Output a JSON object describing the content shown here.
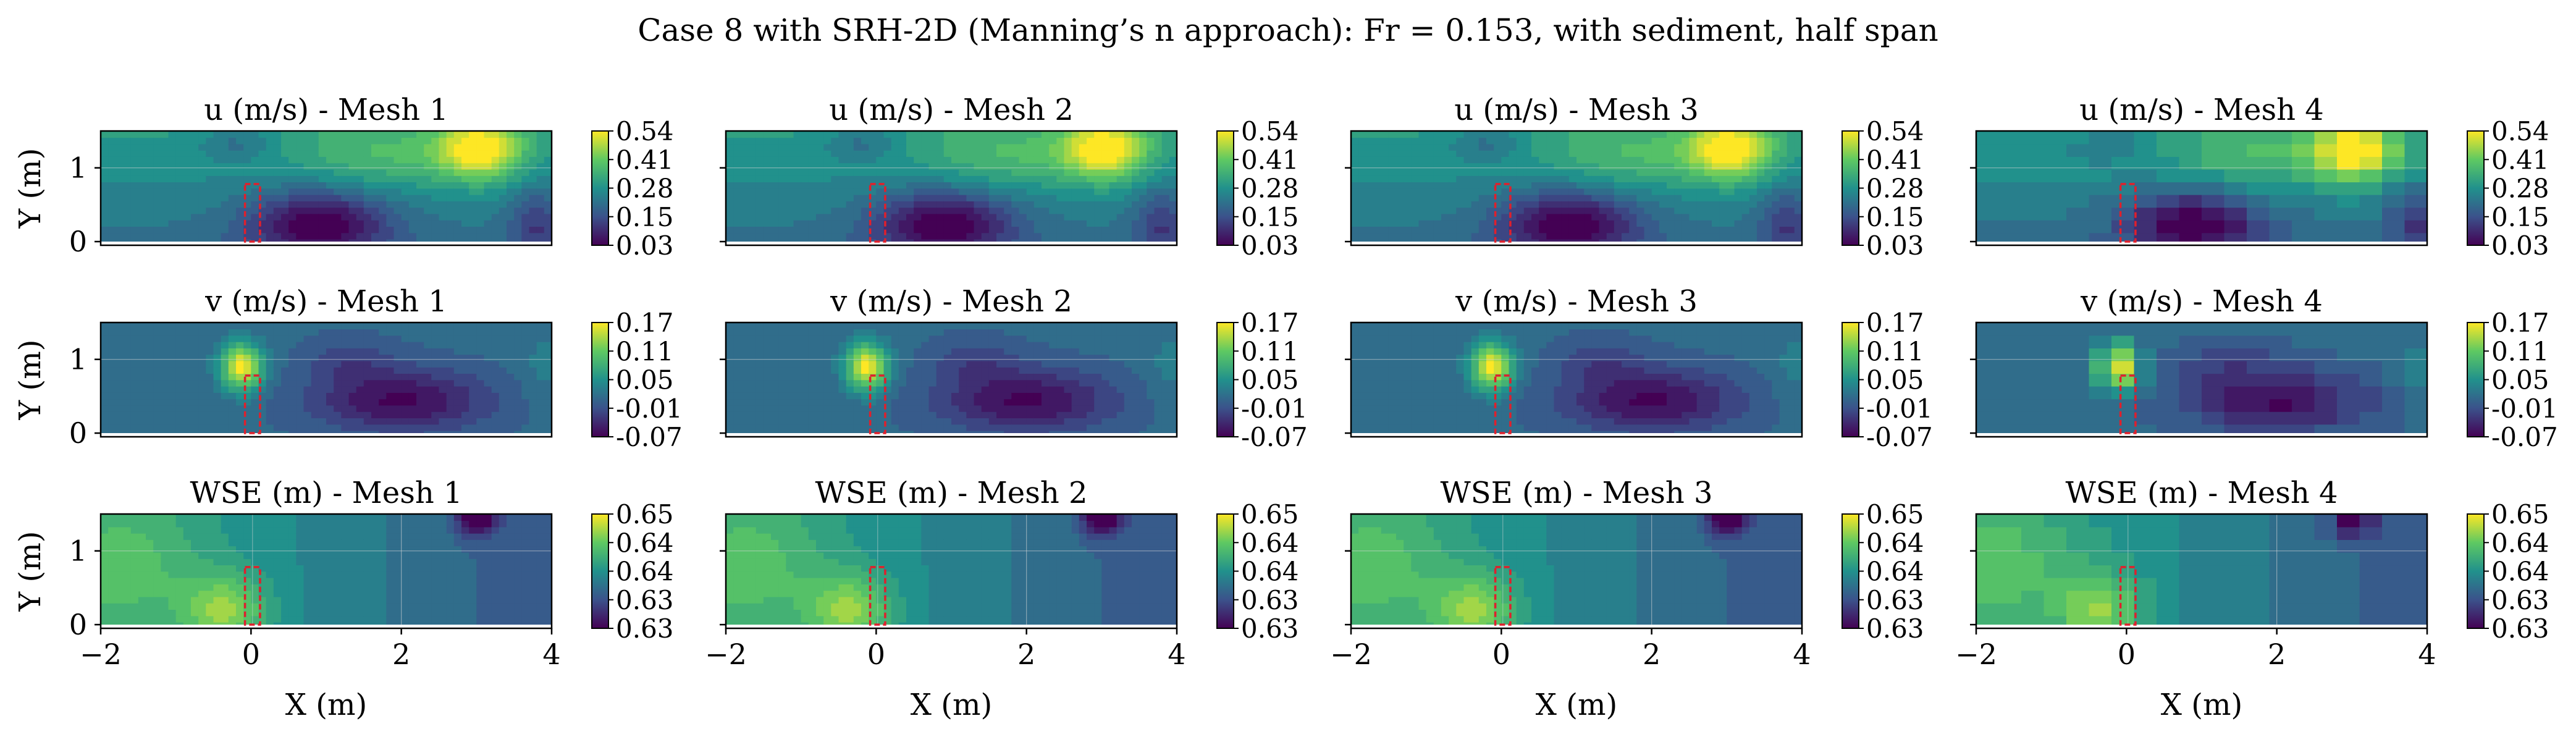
{
  "figure": {
    "suptitle": "Case 8 with SRH-2D (Manning’s n approach): Fr = 0.153, with sediment, half span"
  },
  "chart_data": {
    "type": "heatmap",
    "layout": "3 rows x 4 columns",
    "xlabel": "X (m)",
    "ylabel": "Y (m)",
    "xlim": [
      -2,
      4
    ],
    "ylim": [
      -0.05,
      1.5
    ],
    "xticks": [
      "−2",
      "0",
      "2",
      "4"
    ],
    "yticks": [
      "0",
      "1"
    ],
    "colormap": "viridis",
    "colormap_stops": [
      "#440154",
      "#3b528b",
      "#21918c",
      "#5ec962",
      "#fde725"
    ],
    "obstacle": {
      "x": [
        -0.08,
        0.12
      ],
      "y": [
        0.0,
        0.78
      ],
      "color": "#e0202c",
      "style": "dashed"
    },
    "meshes": [
      "Mesh 1",
      "Mesh 2",
      "Mesh 3",
      "Mesh 4"
    ],
    "rows": [
      {
        "variable": "u (m/s)",
        "colorbar_ticks": [
          "0.54",
          "0.41",
          "0.28",
          "0.15",
          "0.03"
        ],
        "vmin": 0.03,
        "vmax": 0.54,
        "panel_titles": [
          "u (m/s) - Mesh 1",
          "u (m/s) - Mesh 2",
          "u (m/s) - Mesh 3",
          "u (m/s) - Mesh 4"
        ]
      },
      {
        "variable": "v (m/s)",
        "colorbar_ticks": [
          "0.17",
          "0.11",
          "0.05",
          "-0.01",
          "-0.07"
        ],
        "vmin": -0.07,
        "vmax": 0.17,
        "panel_titles": [
          "v (m/s) - Mesh 1",
          "v (m/s) - Mesh 2",
          "v (m/s) - Mesh 3",
          "v (m/s) - Mesh 4"
        ]
      },
      {
        "variable": "WSE (m)",
        "colorbar_ticks": [
          "0.65",
          "0.64",
          "0.64",
          "0.63",
          "0.63"
        ],
        "vmin": 0.63,
        "vmax": 0.65,
        "panel_titles": [
          "WSE (m) - Mesh 1",
          "WSE (m) - Mesh 2",
          "WSE (m) - Mesh 3",
          "WSE (m) - Mesh 4"
        ]
      }
    ]
  }
}
